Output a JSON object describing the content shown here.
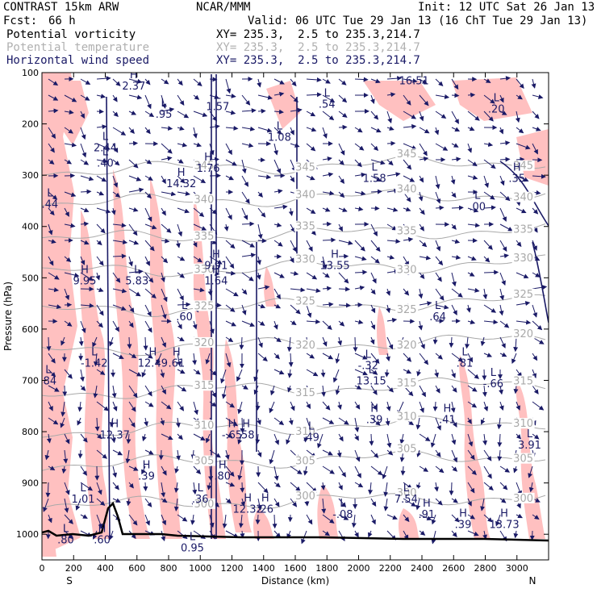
{
  "header": {
    "model": "CONTRAST 15km ARW",
    "org": "NCAR/MMM",
    "init": "Init: 12 UTC Sat 26 Jan 13",
    "fcst_label": "Fcst:",
    "fcst_value": "66 h",
    "valid": "Valid: 06 UTC Tue 29 Jan 13 (16 ChT Tue 29 Jan 13)"
  },
  "fields": [
    {
      "name": "Potential vorticity",
      "xy": "XY= 235.3,  2.5 to 235.3,214.7",
      "color": "#000000"
    },
    {
      "name": "Potential temperature",
      "xy": "XY= 235.3,  2.5 to 235.3,214.7",
      "color": "#b0b0b0"
    },
    {
      "name": "Horizontal wind speed",
      "xy": "XY= 235.3,  2.5 to 235.3,214.7",
      "color": "#1a1a66"
    }
  ],
  "chart_data": {
    "type": "cross-section",
    "xlabel": "Distance (km)",
    "ylabel": "Pressure (hPa)",
    "xlim": [
      0,
      3200
    ],
    "ylim": [
      1050,
      100
    ],
    "x_ticks": [
      0,
      200,
      400,
      600,
      800,
      1000,
      1200,
      1400,
      1600,
      1800,
      2000,
      2200,
      2400,
      2600,
      2800,
      3000
    ],
    "y_ticks": [
      100,
      200,
      300,
      400,
      500,
      600,
      700,
      800,
      900,
      1000
    ],
    "x_end_labels": {
      "left": "S",
      "right": "N"
    },
    "theta_isentropes": [
      {
        "label": "345",
        "p": 292
      },
      {
        "label": "340",
        "p": 355
      },
      {
        "label": "335",
        "p": 425
      },
      {
        "label": "330",
        "p": 490
      },
      {
        "label": "325",
        "p": 565
      },
      {
        "label": "320",
        "p": 640
      },
      {
        "label": "315",
        "p": 725
      },
      {
        "label": "310",
        "p": 800
      },
      {
        "label": "305",
        "p": 865
      },
      {
        "label": "300",
        "p": 945
      }
    ],
    "pv_positive_regions_color": "#ffc0c0",
    "isentrope_color": "#a9a9a9",
    "wind_color": "#1a1a66",
    "annotations": [
      {
        "type": "H",
        "value": "2.37",
        "x": 580,
        "p": 130
      },
      {
        "type": "L",
        "value": ".95",
        "x": 770,
        "p": 185
      },
      {
        "type": "L",
        "value": "2.44",
        "x": 400,
        "p": 250
      },
      {
        "type": "L",
        "value": ".40",
        "x": 400,
        "p": 280
      },
      {
        "type": "L",
        "value": "1.57",
        "x": 1110,
        "p": 170
      },
      {
        "type": "H",
        "value": "1.76",
        "x": 1050,
        "p": 290
      },
      {
        "type": "H",
        "value": "14.32",
        "x": 880,
        "p": 320
      },
      {
        "type": "L",
        "value": ".54",
        "x": 1800,
        "p": 165
      },
      {
        "type": "L",
        "value": "1.08",
        "x": 1500,
        "p": 230
      },
      {
        "type": "L",
        "value": "1.58",
        "x": 2100,
        "p": 310
      },
      {
        "type": "H",
        "value": "16.51",
        "x": 2350,
        "p": 120
      },
      {
        "type": "L",
        "value": ".20",
        "x": 2870,
        "p": 175
      },
      {
        "type": "H",
        "value": ".35",
        "x": 3000,
        "p": 310
      },
      {
        "type": "L",
        "value": ".00",
        "x": 2750,
        "p": 365
      },
      {
        "type": "L",
        "value": ".44",
        "x": 50,
        "p": 360
      },
      {
        "type": "H",
        "value": "9.95",
        "x": 270,
        "p": 510
      },
      {
        "type": "L",
        "value": "5.83",
        "x": 600,
        "p": 510
      },
      {
        "type": "H",
        "value": "9.91",
        "x": 1100,
        "p": 480
      },
      {
        "type": "H",
        "value": "1.64",
        "x": 1100,
        "p": 510
      },
      {
        "type": "H",
        "value": "13.55",
        "x": 1850,
        "p": 480
      },
      {
        "type": "L",
        "value": ".60",
        "x": 900,
        "p": 580
      },
      {
        "type": "L",
        "value": ".64",
        "x": 2500,
        "p": 580
      },
      {
        "type": "L",
        "value": "-1.42",
        "x": 330,
        "p": 670
      },
      {
        "type": "H",
        "value": "12.49",
        "x": 700,
        "p": 670
      },
      {
        "type": "H",
        "value": ".61",
        "x": 850,
        "p": 670
      },
      {
        "type": "L",
        "value": "-.32",
        "x": 2060,
        "p": 675
      },
      {
        "type": "L",
        "value": ".81",
        "x": 2670,
        "p": 670
      },
      {
        "type": "L",
        "value": "-.66",
        "x": 2850,
        "p": 710
      },
      {
        "type": "L",
        "value": ".84",
        "x": 40,
        "p": 705
      },
      {
        "type": "L",
        "value": "13.15",
        "x": 2080,
        "p": 705
      },
      {
        "type": "H",
        "value": ".39",
        "x": 2100,
        "p": 780
      },
      {
        "type": "H",
        "value": ".41",
        "x": 2560,
        "p": 780
      },
      {
        "type": "H",
        "value": "12.37",
        "x": 460,
        "p": 810
      },
      {
        "type": "H",
        "value": "-.65",
        "x": 1200,
        "p": 810
      },
      {
        "type": "H",
        "value": ".58",
        "x": 1290,
        "p": 810
      },
      {
        "type": "L",
        "value": ".49",
        "x": 1700,
        "p": 815
      },
      {
        "type": "L",
        "value": "3.91",
        "x": 3080,
        "p": 830
      },
      {
        "type": "H",
        "value": ".39",
        "x": 660,
        "p": 890
      },
      {
        "type": "H",
        "value": ".80",
        "x": 1140,
        "p": 890
      },
      {
        "type": "L",
        "value": "1.01",
        "x": 260,
        "p": 935
      },
      {
        "type": "L",
        "value": ".36",
        "x": 1000,
        "p": 935
      },
      {
        "type": "H",
        "value": "12.32",
        "x": 1300,
        "p": 955
      },
      {
        "type": "H",
        "value": ".26",
        "x": 1410,
        "p": 955
      },
      {
        "type": "L",
        "value": "-.08",
        "x": 1900,
        "p": 965
      },
      {
        "type": "L",
        "value": "7.54",
        "x": 2300,
        "p": 935
      },
      {
        "type": "H",
        "value": ".91",
        "x": 2430,
        "p": 965
      },
      {
        "type": "H",
        "value": ".39",
        "x": 2660,
        "p": 985
      },
      {
        "type": "H",
        "value": "13.73",
        "x": 2920,
        "p": 985
      },
      {
        "type": "L",
        "value": ".80",
        "x": 150,
        "p": 1015
      },
      {
        "type": "H",
        "value": ".60",
        "x": 380,
        "p": 1015
      },
      {
        "type": "L",
        "value": "0.95",
        "x": 950,
        "p": 1030
      }
    ]
  }
}
